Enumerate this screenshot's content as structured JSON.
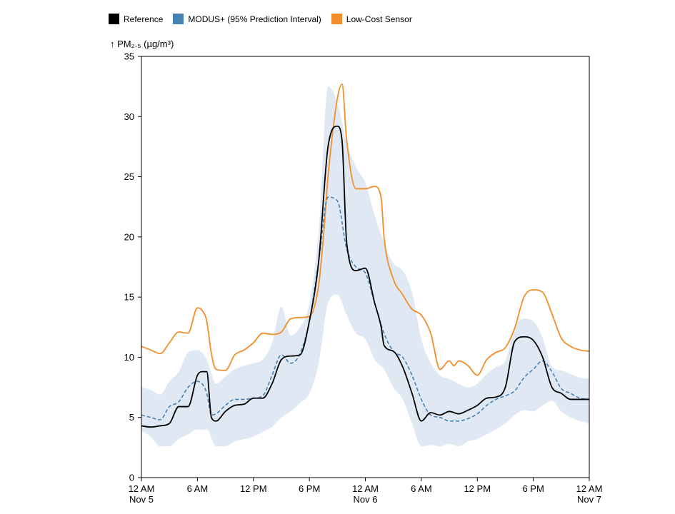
{
  "legend": [
    {
      "label": "Reference",
      "color": "#000000"
    },
    {
      "label": "MODUS+ (95% Prediction Interval)",
      "color": "#4682b4"
    },
    {
      "label": "Low-Cost Sensor",
      "color": "#f28e2b"
    }
  ],
  "chart_data": {
    "type": "line",
    "ylabel": "↑ PM₂.₅ (µg/m³)",
    "xlabel": "",
    "ylim": [
      0,
      35
    ],
    "yticks": [
      0,
      5,
      10,
      15,
      20,
      25,
      30,
      35
    ],
    "xlim": [
      0,
      48
    ],
    "xticks": [
      {
        "x": 0,
        "line1": "12 AM",
        "line2": "Nov 5"
      },
      {
        "x": 6,
        "line1": "6 AM",
        "line2": ""
      },
      {
        "x": 12,
        "line1": "12 PM",
        "line2": ""
      },
      {
        "x": 18,
        "line1": "6 PM",
        "line2": ""
      },
      {
        "x": 24,
        "line1": "12 AM",
        "line2": "Nov 6"
      },
      {
        "x": 30,
        "line1": "6 AM",
        "line2": ""
      },
      {
        "x": 36,
        "line1": "12 PM",
        "line2": ""
      },
      {
        "x": 42,
        "line1": "6 PM",
        "line2": ""
      },
      {
        "x": 48,
        "line1": "12 AM",
        "line2": "Nov 7"
      }
    ],
    "x_unit": "hours from 12 AM Nov 5",
    "grid": false,
    "series": [
      {
        "name": "Low-Cost Sensor",
        "color": "#f28e2b",
        "style": "solid",
        "x": [
          0,
          1,
          2,
          3,
          4,
          5,
          6,
          6.5,
          7,
          7.5,
          8,
          9,
          10,
          11,
          12,
          13,
          14,
          15,
          16,
          17,
          18,
          19,
          19.5,
          20,
          21,
          21.5,
          22,
          23,
          24,
          25,
          25.7,
          26,
          27,
          28,
          29,
          30,
          31,
          32,
          33,
          33.5,
          34,
          35,
          36,
          37,
          38,
          39,
          40,
          41,
          42,
          43,
          44,
          45,
          46,
          47,
          48
        ],
        "values": [
          10.9,
          10.6,
          10.3,
          11.2,
          12.1,
          12.0,
          14.1,
          13.9,
          13.0,
          10.3,
          9.0,
          8.9,
          10.2,
          10.6,
          11.2,
          12.0,
          11.9,
          12.1,
          13.2,
          13.3,
          13.4,
          16.0,
          20.0,
          25.0,
          31.5,
          32.7,
          28.0,
          24.0,
          24.0,
          24.2,
          23.2,
          20.0,
          16.5,
          15.2,
          14.0,
          13.5,
          12.0,
          9.0,
          9.7,
          9.3,
          9.7,
          9.3,
          8.5,
          9.8,
          10.4,
          10.8,
          12.4,
          15.0,
          15.6,
          15.4,
          13.6,
          11.6,
          10.9,
          10.6,
          10.5
        ]
      },
      {
        "name": "Reference",
        "color": "#000000",
        "style": "solid",
        "x": [
          0,
          1,
          2,
          3,
          4,
          5,
          6,
          6.5,
          7,
          7.5,
          8,
          9,
          10,
          11,
          12,
          13,
          14,
          15,
          16,
          17,
          18,
          19,
          20,
          21,
          21.5,
          22,
          23,
          24,
          25,
          25.7,
          26,
          27,
          28,
          29,
          30,
          31,
          32,
          33,
          34,
          35,
          36,
          37,
          38,
          39,
          40,
          41,
          42,
          43,
          44,
          45,
          46,
          47,
          48
        ],
        "values": [
          4.3,
          4.2,
          4.3,
          4.5,
          5.9,
          5.9,
          8.5,
          8.8,
          8.8,
          5.0,
          4.7,
          5.5,
          6.0,
          6.1,
          6.6,
          6.6,
          7.8,
          9.8,
          10.1,
          10.2,
          13.0,
          18.0,
          27.5,
          29.2,
          28.0,
          19.5,
          17.2,
          17.4,
          14.5,
          12.5,
          11.0,
          10.5,
          9.2,
          7.0,
          4.7,
          5.4,
          5.2,
          5.5,
          5.3,
          5.6,
          6.0,
          6.6,
          6.7,
          7.5,
          11.3,
          11.7,
          11.4,
          10.0,
          7.5,
          7.0,
          6.5,
          6.5,
          6.5
        ]
      },
      {
        "name": "MODUS+",
        "color": "#4682b4",
        "style": "dashed",
        "x": [
          0,
          1,
          2,
          3,
          4,
          5,
          6,
          6.5,
          7,
          7.5,
          8,
          9,
          10,
          11,
          12,
          13,
          14,
          15,
          16,
          17,
          18,
          19,
          20,
          21,
          22,
          23,
          24,
          25,
          26,
          27,
          28,
          29,
          30,
          31,
          32,
          33,
          34,
          35,
          36,
          37,
          38,
          39,
          40,
          41,
          42,
          43,
          44,
          45,
          46,
          47,
          48
        ],
        "values": [
          5.2,
          5.0,
          4.8,
          5.9,
          6.3,
          7.5,
          8.0,
          7.8,
          7.0,
          5.2,
          5.3,
          6.0,
          6.5,
          6.5,
          6.6,
          6.8,
          8.5,
          10.2,
          9.5,
          10.3,
          13.0,
          18.0,
          23.3,
          23.0,
          19.0,
          17.5,
          17.0,
          14.5,
          12.0,
          10.5,
          10.0,
          8.5,
          6.5,
          5.2,
          5.0,
          4.7,
          4.7,
          4.9,
          5.3,
          6.0,
          6.5,
          6.8,
          7.2,
          8.3,
          9.0,
          9.7,
          8.8,
          7.4,
          7.0,
          6.6,
          6.5
        ]
      },
      {
        "name": "MODUS+ (95% Prediction Interval)",
        "color": "#dfe8f3",
        "style": "band",
        "x": [
          0,
          1,
          2,
          3,
          4,
          5,
          6,
          7,
          8,
          9,
          10,
          11,
          12,
          13,
          14,
          15,
          16,
          17,
          18,
          19,
          20,
          21,
          22,
          23,
          24,
          25,
          26,
          27,
          28,
          29,
          30,
          31,
          32,
          33,
          34,
          35,
          36,
          37,
          38,
          39,
          40,
          41,
          42,
          43,
          44,
          45,
          46,
          47,
          48
        ],
        "lower": [
          3.9,
          3.4,
          2.6,
          2.6,
          3.2,
          3.6,
          4.0,
          4.0,
          2.6,
          2.6,
          3.0,
          3.2,
          3.4,
          3.8,
          4.2,
          5.0,
          5.5,
          6.2,
          7.0,
          9.5,
          14.5,
          15.2,
          13.5,
          12.0,
          11.5,
          9.8,
          9.0,
          7.5,
          6.5,
          4.5,
          2.6,
          2.7,
          2.6,
          2.8,
          2.6,
          3.0,
          3.2,
          3.6,
          4.0,
          4.5,
          5.2,
          5.6,
          5.5,
          6.0,
          6.4,
          5.5,
          5.0,
          4.7,
          4.5
        ],
        "upper": [
          7.5,
          7.3,
          6.9,
          8.0,
          8.8,
          10.4,
          10.6,
          9.8,
          7.8,
          8.4,
          9.0,
          9.3,
          9.5,
          9.8,
          11.2,
          14.2,
          11.8,
          12.5,
          14.5,
          20.5,
          32.5,
          31.2,
          27.8,
          25.8,
          24.5,
          21.8,
          19.5,
          17.8,
          17.2,
          15.4,
          11.5,
          9.5,
          8.5,
          8.2,
          7.8,
          7.5,
          7.8,
          8.6,
          9.2,
          9.7,
          12.5,
          13.2,
          13.0,
          11.6,
          9.2,
          8.9,
          8.6,
          8.3,
          8.2
        ]
      }
    ]
  }
}
